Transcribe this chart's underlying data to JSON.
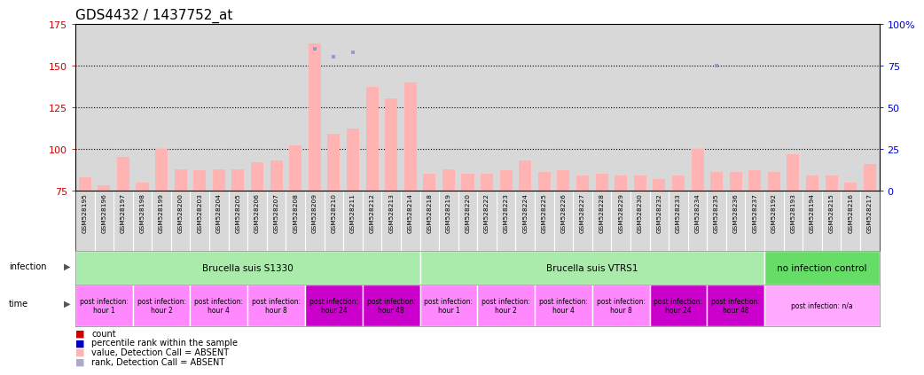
{
  "title": "GDS4432 / 1437752_at",
  "samples": [
    "GSM528195",
    "GSM528196",
    "GSM528197",
    "GSM528198",
    "GSM528199",
    "GSM528200",
    "GSM528203",
    "GSM528204",
    "GSM528205",
    "GSM528206",
    "GSM528207",
    "GSM528208",
    "GSM528209",
    "GSM528210",
    "GSM528211",
    "GSM528212",
    "GSM528213",
    "GSM528214",
    "GSM528218",
    "GSM528219",
    "GSM528220",
    "GSM528222",
    "GSM528223",
    "GSM528224",
    "GSM528225",
    "GSM528226",
    "GSM528227",
    "GSM528228",
    "GSM528229",
    "GSM528230",
    "GSM528232",
    "GSM528233",
    "GSM528234",
    "GSM528235",
    "GSM528236",
    "GSM528237",
    "GSM528192",
    "GSM528193",
    "GSM528194",
    "GSM528215",
    "GSM528216",
    "GSM528217"
  ],
  "bar_values": [
    83,
    78,
    95,
    80,
    100,
    88,
    87,
    88,
    88,
    92,
    93,
    102,
    163,
    109,
    112,
    137,
    130,
    140,
    85,
    88,
    85,
    85,
    87,
    93,
    86,
    87,
    84,
    85,
    84,
    84,
    82,
    84,
    100,
    86,
    86,
    87,
    86,
    97,
    84,
    84,
    80,
    91
  ],
  "rank_values": [
    74,
    72,
    74,
    73,
    74,
    74,
    73,
    73,
    73,
    73,
    73,
    73,
    160,
    155,
    158,
    73,
    73,
    73,
    73,
    73,
    73,
    73,
    72,
    72,
    73,
    72,
    73,
    73,
    72,
    73,
    73,
    73,
    73,
    150,
    73,
    73,
    73,
    73,
    73,
    73,
    73,
    73
  ],
  "bar_color": "#FFB3B3",
  "rank_color": "#9999CC",
  "ylim_left": [
    75,
    175
  ],
  "ylim_right": [
    0,
    100
  ],
  "yticks_left": [
    75,
    100,
    125,
    150,
    175
  ],
  "yticks_right": [
    0,
    25,
    50,
    75,
    100
  ],
  "ytick_labels_right": [
    "0",
    "25",
    "50",
    "75",
    "100%"
  ],
  "grid_values": [
    100,
    125,
    150
  ],
  "infection_groups": [
    {
      "label": "Brucella suis S1330",
      "start": 0,
      "end": 18,
      "color": "#AAEAAA"
    },
    {
      "label": "Brucella suis VTRS1",
      "start": 18,
      "end": 36,
      "color": "#AAEAAA"
    },
    {
      "label": "no infection control",
      "start": 36,
      "end": 42,
      "color": "#66DD66"
    }
  ],
  "time_groups": [
    {
      "label": "post infection:\nhour 1",
      "start": 0,
      "end": 3,
      "color": "#FF88FF"
    },
    {
      "label": "post infection:\nhour 2",
      "start": 3,
      "end": 6,
      "color": "#FF88FF"
    },
    {
      "label": "post infection:\nhour 4",
      "start": 6,
      "end": 9,
      "color": "#FF88FF"
    },
    {
      "label": "post infection:\nhour 8",
      "start": 9,
      "end": 12,
      "color": "#FF88FF"
    },
    {
      "label": "post infection:\nhour 24",
      "start": 12,
      "end": 15,
      "color": "#CC00CC"
    },
    {
      "label": "post infection:\nhour 48",
      "start": 15,
      "end": 18,
      "color": "#CC00CC"
    },
    {
      "label": "post infection:\nhour 1",
      "start": 18,
      "end": 21,
      "color": "#FF88FF"
    },
    {
      "label": "post infection:\nhour 2",
      "start": 21,
      "end": 24,
      "color": "#FF88FF"
    },
    {
      "label": "post infection:\nhour 4",
      "start": 24,
      "end": 27,
      "color": "#FF88FF"
    },
    {
      "label": "post infection:\nhour 8",
      "start": 27,
      "end": 30,
      "color": "#FF88FF"
    },
    {
      "label": "post infection:\nhour 24",
      "start": 30,
      "end": 33,
      "color": "#CC00CC"
    },
    {
      "label": "post infection:\nhour 48",
      "start": 33,
      "end": 36,
      "color": "#CC00CC"
    },
    {
      "label": "post infection: n/a",
      "start": 36,
      "end": 42,
      "color": "#FFAAFF"
    }
  ],
  "bg_color": "#D8D8D8",
  "title_fontsize": 11,
  "left_tick_color": "#CC0000",
  "right_tick_color": "#0000CC",
  "legend": [
    {
      "color": "#CC0000",
      "label": "count"
    },
    {
      "color": "#0000BB",
      "label": "percentile rank within the sample"
    },
    {
      "color": "#FFB3B3",
      "label": "value, Detection Call = ABSENT"
    },
    {
      "color": "#AAAACC",
      "label": "rank, Detection Call = ABSENT"
    }
  ]
}
